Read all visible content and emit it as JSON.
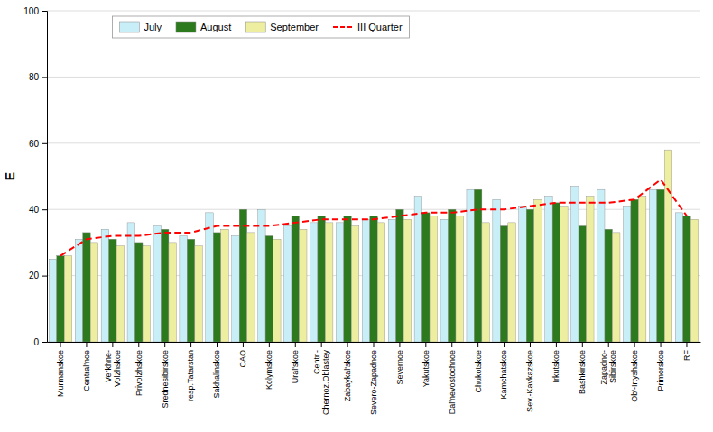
{
  "chart_data": {
    "type": "bar",
    "categories": [
      "Murmanskoe",
      "Central'noe",
      "Verkhne-\nVolzhskoe",
      "Privolzhskoe",
      "Srednesibirskoe",
      "resp.Tatarstan",
      "Sakhalinskoe",
      "CAO",
      "Kolymskoe",
      "Ural'skoe",
      "Centr.-\nChernoz.Oblastey",
      "Zabaykal'skoe",
      "Severo-Zapadnoe",
      "Severnoe",
      "Yakutskoe",
      "Dal'nevostochnoe",
      "Chukotskoe",
      "Kamchatskoe",
      "Sev.-Kavkazskoe",
      "Irkutskoe",
      "Bashkirskoe",
      "Zapadno-\nSibirskoe",
      "Ob'-Irtyshskoe",
      "Primorskoe",
      "RF"
    ],
    "series": [
      {
        "name": "July",
        "type": "bar",
        "color": "#c8eef8",
        "values": [
          25,
          31,
          34,
          36,
          35,
          32,
          39,
          32,
          40,
          35,
          36,
          36,
          37,
          37,
          44,
          37,
          46,
          43,
          41,
          44,
          47,
          46,
          41,
          46,
          39
        ]
      },
      {
        "name": "August",
        "type": "bar",
        "color": "#2d7a1e",
        "values": [
          26,
          33,
          31,
          30,
          34,
          31,
          33,
          40,
          32,
          38,
          38,
          38,
          38,
          40,
          39,
          40,
          46,
          35,
          40,
          42,
          35,
          34,
          43,
          46,
          38
        ]
      },
      {
        "name": "September",
        "type": "bar",
        "color": "#eeeea0",
        "values": [
          26,
          30,
          29,
          29,
          30,
          29,
          34,
          33,
          31,
          34,
          36,
          35,
          36,
          37,
          38,
          38,
          36,
          36,
          43,
          41,
          44,
          33,
          44,
          58,
          37
        ]
      },
      {
        "name": "III Quarter",
        "type": "line",
        "color": "#ff0000",
        "line_style": "dashed",
        "values": [
          26,
          31,
          32,
          32,
          33,
          33,
          35,
          35,
          35,
          36,
          37,
          37,
          37,
          38,
          39,
          39,
          40,
          40,
          41,
          42,
          42,
          42,
          43,
          49,
          38
        ]
      }
    ],
    "ylabel": "E",
    "ylim": [
      0,
      100
    ],
    "yticks": [
      0,
      20,
      40,
      60,
      80,
      100
    ],
    "grid": true,
    "legend": "upper left"
  }
}
